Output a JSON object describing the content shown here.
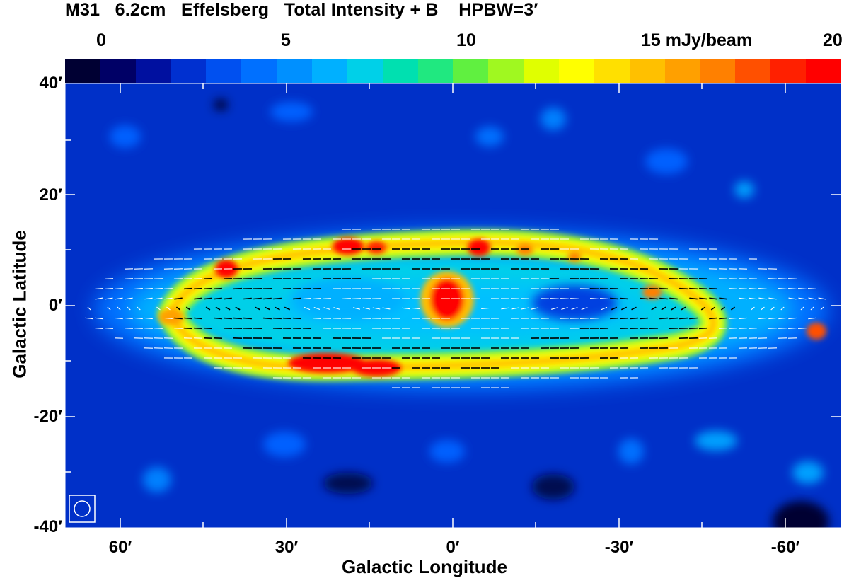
{
  "title": {
    "object": "M31",
    "wavelength": "6.2cm",
    "telescope": "Effelsberg",
    "product": "Total Intensity + B",
    "beam": "HPBW=3′"
  },
  "colorbar": {
    "ticks": [
      "0",
      "5",
      "10",
      "15 mJy/beam",
      "20"
    ],
    "range": [
      0,
      20
    ],
    "unit": "mJy/beam",
    "colors": [
      "#000033",
      "#000066",
      "#0010a0",
      "#0030d0",
      "#0050f0",
      "#0070ff",
      "#0090ff",
      "#00b0ff",
      "#00d0e8",
      "#00e0b0",
      "#20e880",
      "#60f040",
      "#a0f820",
      "#e0ff00",
      "#ffff00",
      "#ffe000",
      "#ffc000",
      "#ffa000",
      "#ff8000",
      "#ff5000",
      "#ff2000",
      "#ff0000"
    ]
  },
  "axes": {
    "xlabel": "Galactic Longitude",
    "ylabel": "Galactic Latitude",
    "xticks": [
      "60′",
      "30′",
      "0′",
      "-30′",
      "-60′"
    ],
    "yticks": [
      "40′",
      "20′",
      "0′",
      "-20′",
      "-40′"
    ],
    "xlim": [
      70,
      -70
    ],
    "ylim": [
      -40,
      40
    ]
  },
  "map": {
    "background_color": "#0030c8",
    "vector_colors": {
      "on_bright": "#000000",
      "on_faint": "#ffffff"
    }
  },
  "beam_marker": "beam-circle-icon"
}
